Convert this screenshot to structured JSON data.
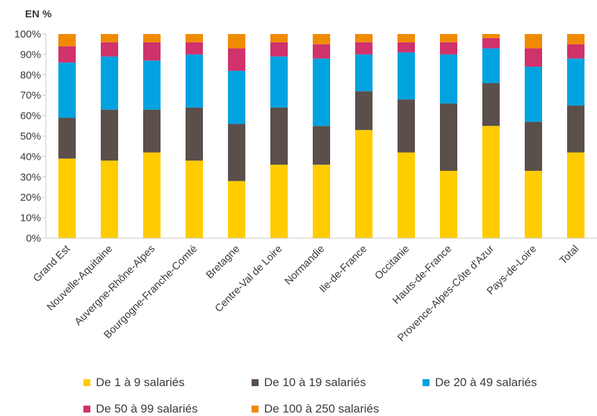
{
  "chart_data": {
    "type": "bar",
    "stacked": true,
    "unit_label": "EN %",
    "title": "",
    "xlabel": "",
    "ylabel": "",
    "ylim": [
      0,
      100
    ],
    "yticks": [
      "0%",
      "10%",
      "20%",
      "30%",
      "40%",
      "50%",
      "60%",
      "70%",
      "80%",
      "90%",
      "100%"
    ],
    "grid": false,
    "legend_position": "bottom",
    "categories": [
      "Grand Est",
      "Nouvelle-Aquitaine",
      "Auvergne-Rhône-Alpes",
      "Bourgogne-Franche-Comté",
      "Bretagne",
      "Centre-Val de Loire",
      "Normandie",
      "Ile-de-France",
      "Occitanie",
      "Hauts-de-France",
      "Provence-Alpes-Côte d'Azur",
      "Pays-de-Loire",
      "Total"
    ],
    "series": [
      {
        "name": "De 1 à 9 salariés",
        "color": "#FFCC00",
        "values": [
          39,
          38,
          42,
          38,
          28,
          36,
          36,
          53,
          42,
          33,
          55,
          33,
          42
        ]
      },
      {
        "name": "De 10 à 19 salariés",
        "color": "#5B4F4B",
        "values": [
          20,
          25,
          21,
          26,
          28,
          28,
          19,
          19,
          26,
          33,
          21,
          24,
          23
        ]
      },
      {
        "name": "De 20 à 49 salariés",
        "color": "#00A3E0",
        "values": [
          27,
          26,
          24,
          26,
          26,
          25,
          33,
          18,
          23,
          24,
          17,
          27,
          23
        ]
      },
      {
        "name": "De 50 à 99 salariés",
        "color": "#D0326B",
        "values": [
          8,
          7,
          9,
          6,
          11,
          7,
          7,
          6,
          5,
          6,
          5,
          9,
          7
        ]
      },
      {
        "name": "De 100 à 250 salariés",
        "color": "#F08A00",
        "values": [
          6,
          4,
          4,
          4,
          7,
          4,
          5,
          4,
          4,
          4,
          2,
          7,
          5
        ]
      }
    ]
  }
}
